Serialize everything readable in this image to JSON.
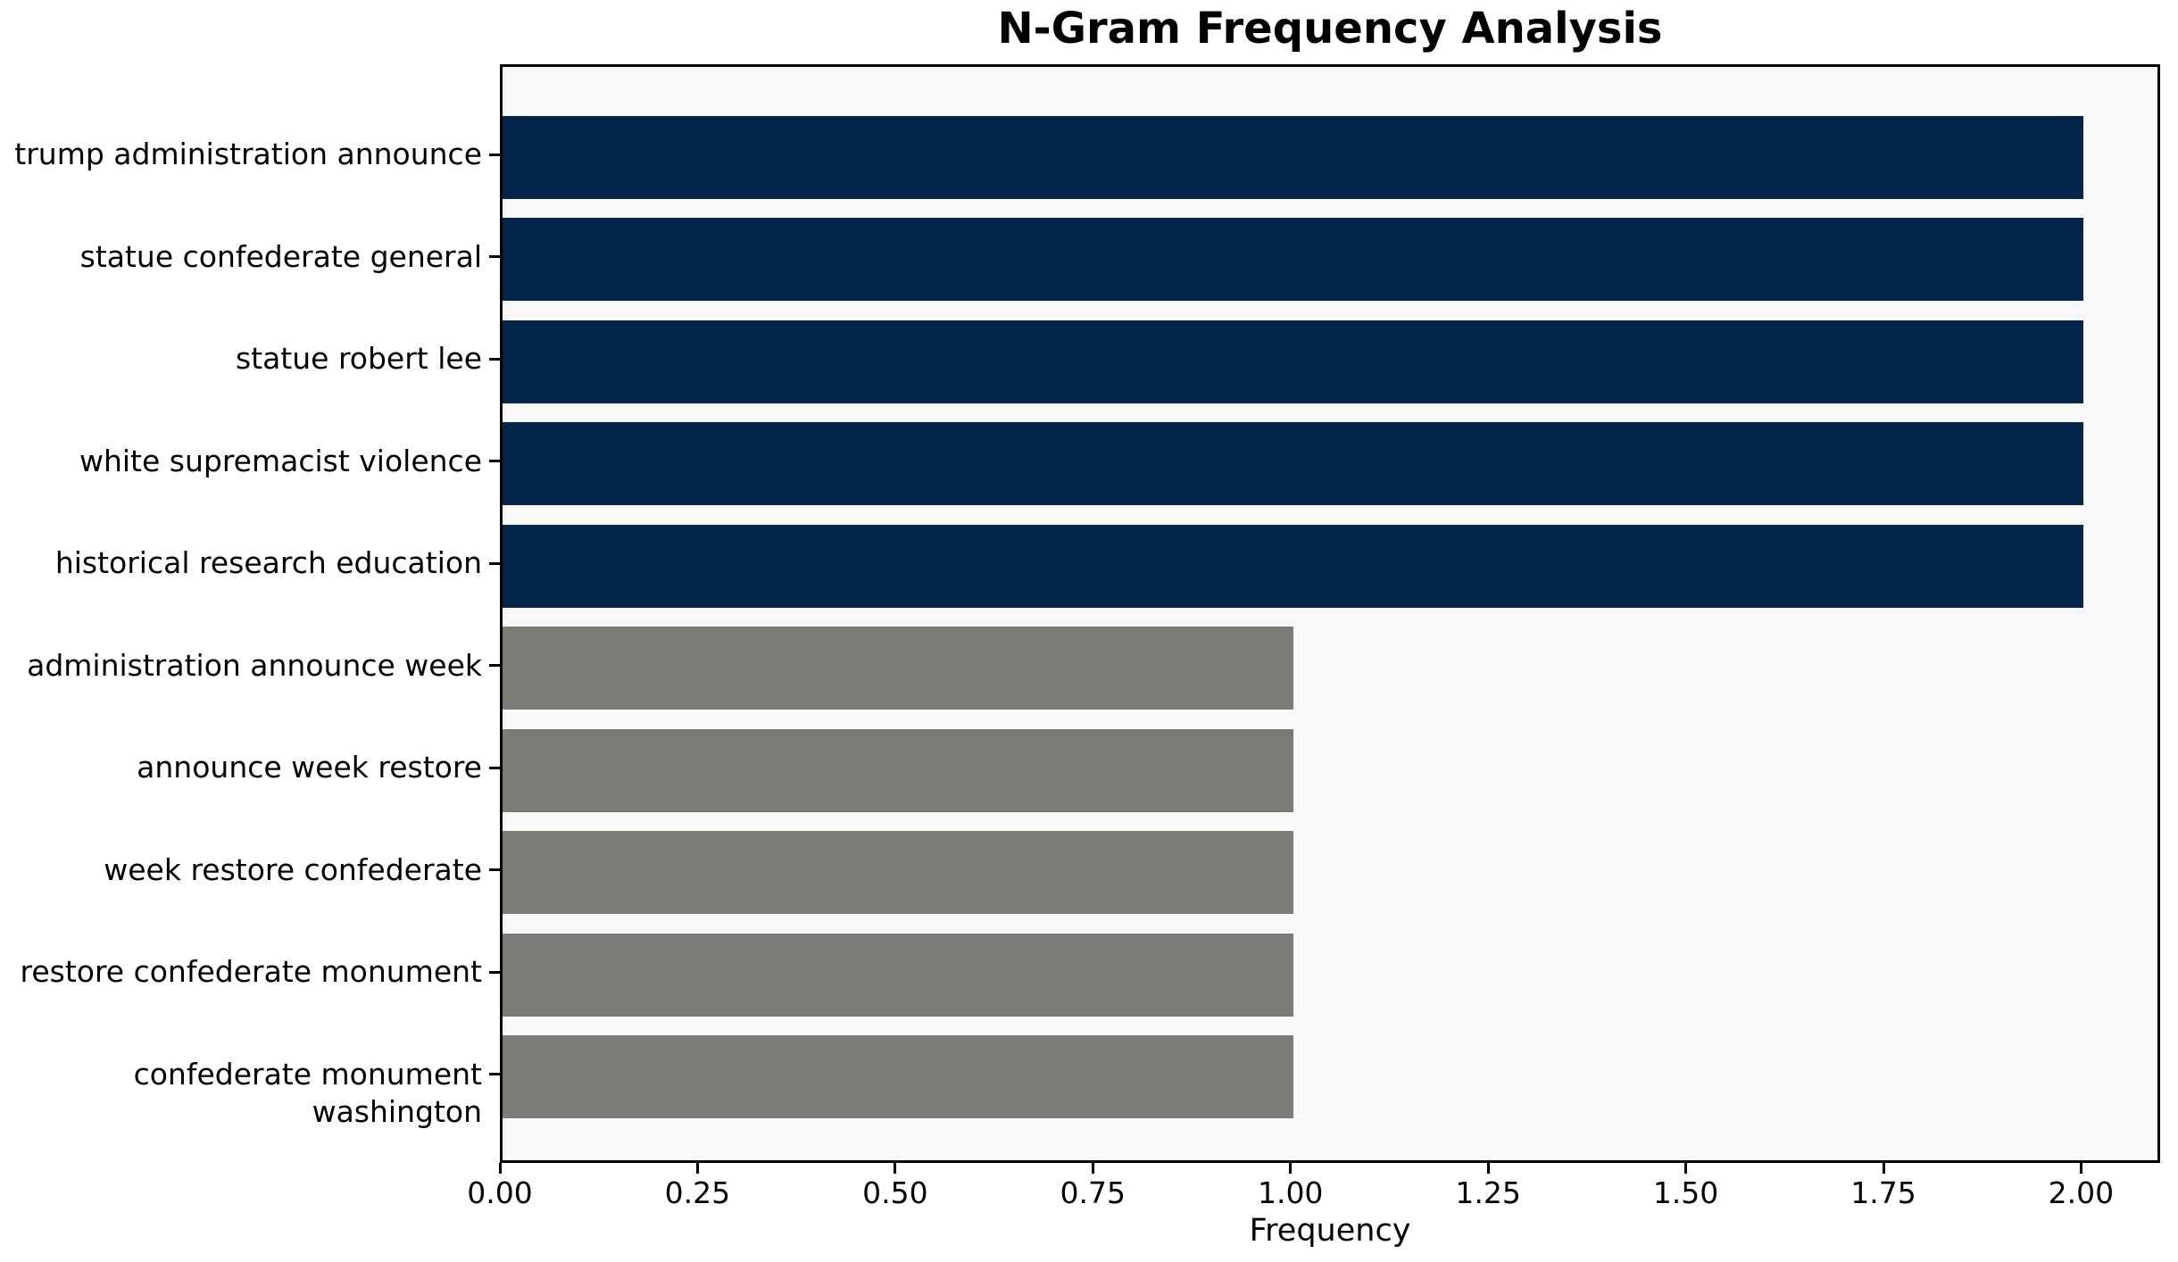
{
  "title": "N-Gram Frequency Analysis",
  "chart_data": {
    "type": "bar",
    "orientation": "horizontal",
    "title": "N-Gram Frequency Analysis",
    "xlabel": "Frequency",
    "categories": [
      "trump administration announce",
      "statue confederate general",
      "statue robert lee",
      "white supremacist violence",
      "historical research education",
      "administration announce week",
      "announce week restore",
      "week restore confederate",
      "restore confederate monument",
      "confederate monument washington"
    ],
    "values": [
      2,
      2,
      2,
      2,
      2,
      1,
      1,
      1,
      1,
      1
    ],
    "bar_colors": [
      "#022549",
      "#022549",
      "#022549",
      "#022549",
      "#022549",
      "#7b7b78",
      "#7b7b78",
      "#7b7b78",
      "#7b7b78",
      "#7b7b78"
    ],
    "x_ticks": [
      "0.00",
      "0.25",
      "0.50",
      "0.75",
      "1.00",
      "1.25",
      "1.50",
      "1.75",
      "2.00"
    ],
    "x_tick_values": [
      0,
      0.25,
      0.5,
      0.75,
      1.0,
      1.25,
      1.5,
      1.75,
      2.0
    ],
    "xlim": [
      0,
      2.1
    ],
    "grid": false,
    "legend": null,
    "plot_background": "#f8f8f8",
    "figure_background": "#ffffff",
    "spine_color": "#000000"
  }
}
